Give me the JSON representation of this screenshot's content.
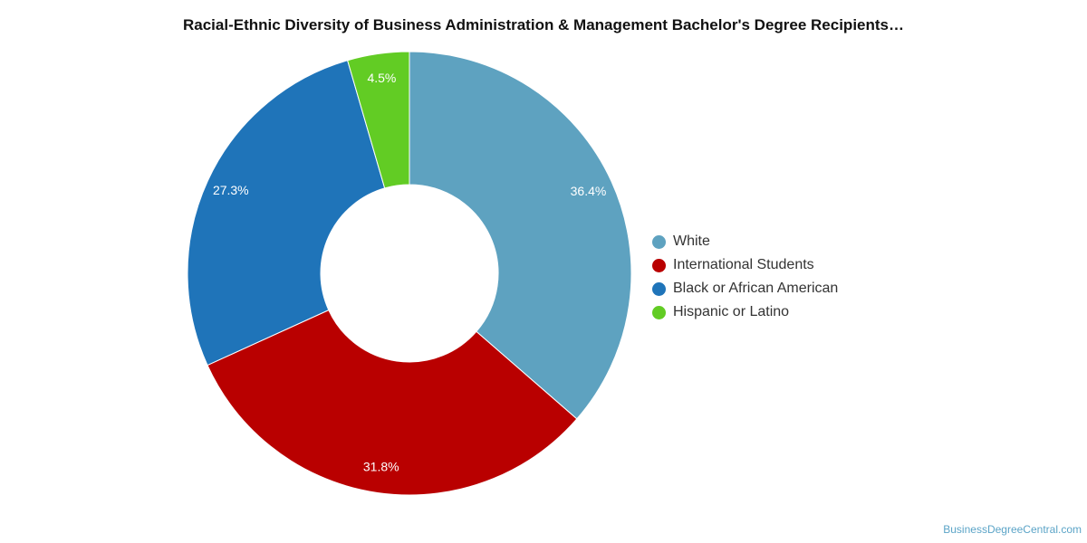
{
  "chart_data": {
    "type": "pie",
    "title": "Racial-Ethnic Diversity of Business Administration & Management Bachelor's Degree Recipients…",
    "slices": [
      {
        "label": "White",
        "value": 36.4,
        "display": "36.4%",
        "color": "#5ea2c0"
      },
      {
        "label": "International Students",
        "value": 31.8,
        "display": "31.8%",
        "color": "#b90000"
      },
      {
        "label": "Black or African American",
        "value": 27.3,
        "display": "27.3%",
        "color": "#1f74b9"
      },
      {
        "label": "Hispanic or Latino",
        "value": 4.5,
        "display": "4.5%",
        "color": "#62cc24"
      }
    ],
    "donut": true,
    "legend_position": "right"
  },
  "watermark": "BusinessDegreeCentral.com"
}
